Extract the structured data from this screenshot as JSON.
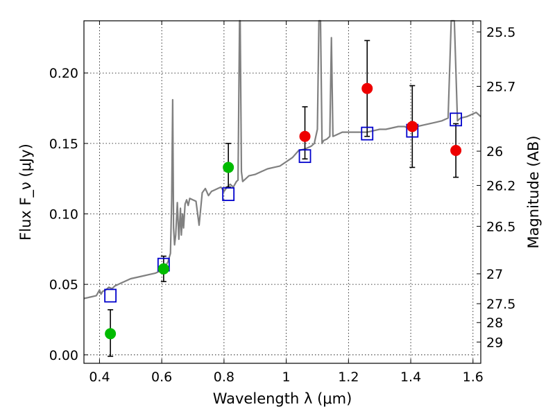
{
  "chart_data": {
    "type": "scatter",
    "xlabel": "Wavelength λ (μm)",
    "ylabel": "Flux F_ν (μJy)",
    "y2label": "Magnitude (AB)",
    "xlim": [
      0.35,
      1.625
    ],
    "ylim": [
      -0.006,
      0.237
    ],
    "grid": true,
    "x_ticks": [
      0.4,
      0.6,
      0.8,
      1.0,
      1.2,
      1.4,
      1.6
    ],
    "x_tick_labels": [
      "0.4",
      "0.6",
      "0.8",
      "1",
      "1.2",
      "1.4",
      "1.6"
    ],
    "y_ticks": [
      0.0,
      0.05,
      0.1,
      0.15,
      0.2
    ],
    "y_tick_labels": [
      "0.00",
      "0.05",
      "0.10",
      "0.15",
      "0.20"
    ],
    "y2_ticks": [
      {
        "label": "25.5",
        "flux": 0.2291
      },
      {
        "label": "25.7",
        "flux": 0.1905
      },
      {
        "label": "26",
        "flux": 0.1445
      },
      {
        "label": "26.2",
        "flux": 0.1202
      },
      {
        "label": "26.5",
        "flux": 0.0912
      },
      {
        "label": "27",
        "flux": 0.0575
      },
      {
        "label": "27.5",
        "flux": 0.0363
      },
      {
        "label": "28",
        "flux": 0.0229
      },
      {
        "label": "29",
        "flux": 0.0091
      }
    ],
    "series": [
      {
        "kind": "model-spectrum",
        "color": "#808080",
        "x": [
          0.35,
          0.37,
          0.39,
          0.4,
          0.405,
          0.41,
          0.42,
          0.43,
          0.44,
          0.45,
          0.46,
          0.47,
          0.48,
          0.5,
          0.52,
          0.54,
          0.56,
          0.58,
          0.6,
          0.61,
          0.62,
          0.628,
          0.632,
          0.635,
          0.638,
          0.641,
          0.645,
          0.65,
          0.655,
          0.66,
          0.663,
          0.667,
          0.67,
          0.675,
          0.68,
          0.685,
          0.69,
          0.7,
          0.71,
          0.72,
          0.73,
          0.74,
          0.75,
          0.76,
          0.77,
          0.78,
          0.79,
          0.8,
          0.81,
          0.82,
          0.83,
          0.84,
          0.845,
          0.85,
          0.852,
          0.856,
          0.86,
          0.87,
          0.88,
          0.9,
          0.92,
          0.94,
          0.96,
          0.98,
          1.0,
          1.02,
          1.04,
          1.06,
          1.08,
          1.09,
          1.1,
          1.105,
          1.11,
          1.115,
          1.12,
          1.13,
          1.14,
          1.145,
          1.15,
          1.16,
          1.18,
          1.2,
          1.22,
          1.24,
          1.26,
          1.28,
          1.3,
          1.32,
          1.34,
          1.36,
          1.38,
          1.4,
          1.42,
          1.44,
          1.46,
          1.48,
          1.5,
          1.52,
          1.53,
          1.54,
          1.55,
          1.56,
          1.58,
          1.6,
          1.61,
          1.625
        ],
        "y": [
          0.04,
          0.041,
          0.042,
          0.046,
          0.043,
          0.045,
          0.046,
          0.048,
          0.047,
          0.049,
          0.05,
          0.051,
          0.052,
          0.054,
          0.055,
          0.056,
          0.057,
          0.058,
          0.06,
          0.062,
          0.066,
          0.072,
          0.11,
          0.181,
          0.09,
          0.078,
          0.085,
          0.108,
          0.082,
          0.104,
          0.085,
          0.1,
          0.09,
          0.107,
          0.11,
          0.106,
          0.111,
          0.11,
          0.109,
          0.092,
          0.115,
          0.118,
          0.113,
          0.116,
          0.117,
          0.118,
          0.119,
          0.116,
          0.119,
          0.121,
          0.119,
          0.123,
          0.124,
          0.238,
          0.238,
          0.13,
          0.123,
          0.125,
          0.127,
          0.128,
          0.13,
          0.132,
          0.133,
          0.134,
          0.137,
          0.14,
          0.145,
          0.146,
          0.148,
          0.15,
          0.16,
          0.238,
          0.238,
          0.15,
          0.152,
          0.153,
          0.155,
          0.225,
          0.155,
          0.156,
          0.158,
          0.158,
          0.158,
          0.158,
          0.158,
          0.159,
          0.16,
          0.16,
          0.161,
          0.162,
          0.162,
          0.16,
          0.162,
          0.163,
          0.164,
          0.165,
          0.166,
          0.168,
          0.238,
          0.238,
          0.166,
          0.168,
          0.169,
          0.171,
          0.172,
          0.169
        ]
      },
      {
        "kind": "model-photometry",
        "marker": "open-square",
        "color": "#0000cc",
        "x": [
          0.435,
          0.606,
          0.814,
          1.06,
          1.26,
          1.405,
          1.545
        ],
        "y": [
          0.042,
          0.064,
          0.114,
          0.141,
          0.157,
          0.159,
          0.167
        ]
      },
      {
        "kind": "observed-optical",
        "marker": "filled-circle",
        "color": "#00bb00",
        "x": [
          0.435,
          0.606,
          0.814
        ],
        "y": [
          0.015,
          0.061,
          0.133
        ],
        "yerr_low": [
          0.016,
          0.009,
          0.014
        ],
        "yerr_high": [
          0.017,
          0.009,
          0.017
        ]
      },
      {
        "kind": "observed-infrared",
        "marker": "filled-circle",
        "color": "#ee0000",
        "x": [
          1.06,
          1.26,
          1.405,
          1.545
        ],
        "y": [
          0.155,
          0.189,
          0.162,
          0.145
        ],
        "yerr_low": [
          0.016,
          0.034,
          0.029,
          0.019
        ],
        "yerr_high": [
          0.021,
          0.034,
          0.029,
          0.019
        ]
      }
    ]
  }
}
